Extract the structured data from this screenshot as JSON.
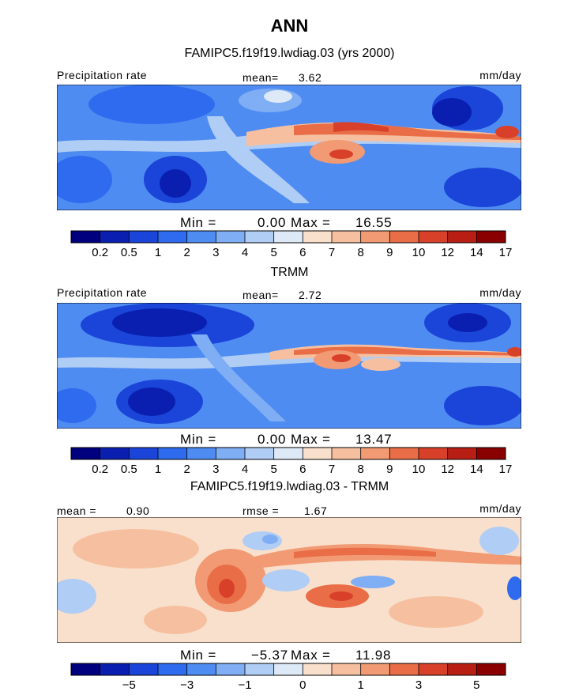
{
  "figure": {
    "title": "ANN",
    "subtitle": "FAMIPC5.f19f19.lwdiag.03 (yrs 2000)"
  },
  "panels": [
    {
      "title": "",
      "left_label": "Precipitation rate",
      "stat_label": "mean=",
      "stat_value": "3.62",
      "stat2_label": "",
      "stat2_value": "",
      "units": "mm/day",
      "min_label": "Min =",
      "min_value": "0.00",
      "max_label": "Max =",
      "max_value": "16.55",
      "colorbar_ticks": [
        "0.2",
        "0.5",
        "1",
        "2",
        "3",
        "4",
        "5",
        "6",
        "7",
        "8",
        "9",
        "10",
        "12",
        "14",
        "17"
      ]
    },
    {
      "title": "TRMM",
      "left_label": "Precipitation rate",
      "stat_label": "mean=",
      "stat_value": "2.72",
      "stat2_label": "",
      "stat2_value": "",
      "units": "mm/day",
      "min_label": "Min =",
      "min_value": "0.00",
      "max_label": "Max =",
      "max_value": "13.47",
      "colorbar_ticks": [
        "0.2",
        "0.5",
        "1",
        "2",
        "3",
        "4",
        "5",
        "6",
        "7",
        "8",
        "9",
        "10",
        "12",
        "14",
        "17"
      ]
    },
    {
      "title": "FAMIPC5.f19f19.lwdiag.03 - TRMM",
      "left_label": "",
      "stat_label": "mean =",
      "stat_value": "0.90",
      "stat2_label": "rmse =",
      "stat2_value": "1.67",
      "units": "mm/day",
      "min_label": "Min =",
      "min_value": "−5.37",
      "max_label": "Max =",
      "max_value": "11.98",
      "colorbar_ticks": [
        "−5",
        "−3",
        "−1",
        "0",
        "1",
        "3",
        "5"
      ]
    }
  ],
  "chart_data": {
    "type": "heatmap",
    "colors": {
      "precip_scale": [
        "#00007f",
        "#0a1fb0",
        "#1a45d8",
        "#2f6bef",
        "#4f8cf2",
        "#7faef4",
        "#b0cdf5",
        "#dde9f7",
        "#f9e0cc",
        "#f6c0a0",
        "#f19a73",
        "#e96e47",
        "#d8402a",
        "#b81e14",
        "#8a0000"
      ],
      "diff_scale": [
        "#00007f",
        "#0a1fb0",
        "#1a45d8",
        "#2f6bef",
        "#4f8cf2",
        "#7faef4",
        "#b0cdf5",
        "#dde9f7",
        "#f9e0cc",
        "#f6c0a0",
        "#f19a73",
        "#e96e47",
        "#d8402a",
        "#b81e14",
        "#8a0000"
      ]
    },
    "panels": [
      {
        "name": "FAMIPC5.f19f19.lwdiag.03",
        "mean": 3.62,
        "min": 0.0,
        "max": 16.55,
        "units": "mm/day"
      },
      {
        "name": "TRMM",
        "mean": 2.72,
        "min": 0.0,
        "max": 13.47,
        "units": "mm/day"
      },
      {
        "name": "FAMIPC5.f19f19.lwdiag.03 - TRMM",
        "mean": 0.9,
        "rmse": 1.67,
        "min": -5.37,
        "max": 11.98,
        "units": "mm/day"
      }
    ],
    "precip_levels": [
      0.2,
      0.5,
      1,
      2,
      3,
      4,
      5,
      6,
      7,
      8,
      9,
      10,
      12,
      14,
      17
    ],
    "diff_levels": [
      -5,
      -3,
      -1,
      0,
      1,
      3,
      5
    ]
  }
}
